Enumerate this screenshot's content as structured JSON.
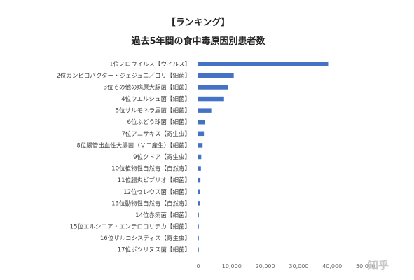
{
  "chart_data": {
    "type": "bar",
    "orientation": "horizontal",
    "title": "【ランキング】",
    "subtitle": "過去5年間の食中毒原因別患者数",
    "categories": [
      "1位ノロウイルス【ウイルス】",
      "2位カンピロバクター・ジェジュニ／コリ【細菌】",
      "3位その他の病原大腸菌【細菌】",
      "4位ウエルシュ菌【細菌】",
      "5位サルモネラ属菌【細菌】",
      "6位ぶどう球菌【細菌】",
      "7位アニサキス【寄生虫】",
      "8位腸管出血性大腸菌（ＶＴ産生）【細菌】",
      "9位クドア【寄生虫】",
      "10位植物性自然毒【自然毒】",
      "11位腸炎ビブリオ【細菌】",
      "12位セレウス菌【細菌】",
      "13位動物性自然毒【自然毒】",
      "14位赤痢菌【細菌】",
      "15位エルシニア・エンテロコリチカ【細菌】",
      "16位ザルコシスティス【寄生虫】",
      "17位ボツリヌス菌【細菌】"
    ],
    "values": [
      38800,
      10600,
      8800,
      7700,
      3900,
      2100,
      1700,
      1300,
      900,
      800,
      650,
      550,
      450,
      180,
      150,
      80,
      30
    ],
    "xlim": [
      0,
      50000
    ],
    "xticks": [
      0,
      10000,
      20000,
      30000,
      40000,
      50000
    ],
    "xtick_labels": [
      "0",
      "10,000",
      "20,000",
      "30,000",
      "40,000",
      "50,000"
    ],
    "bar_color": "#4472c4",
    "grid": false,
    "legend": "none"
  },
  "watermark": "知乎"
}
